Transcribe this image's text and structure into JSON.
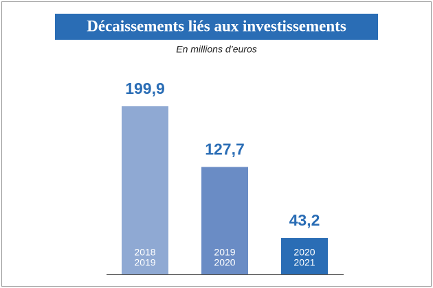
{
  "chart_data": {
    "type": "bar",
    "title": "Décaissements liés aux investissements",
    "subtitle": "En millions d’euros",
    "categories": [
      [
        "2018",
        "2019"
      ],
      [
        "2019",
        "2020"
      ],
      [
        "2020",
        "2021"
      ]
    ],
    "values": [
      199.9,
      127.7,
      43.2
    ],
    "value_labels": [
      "199,9",
      "127,7",
      "43,2"
    ],
    "colors": [
      "#8fa9d3",
      "#6a8cc5",
      "#2a6db5"
    ],
    "label_color": "#2a6db5"
  }
}
